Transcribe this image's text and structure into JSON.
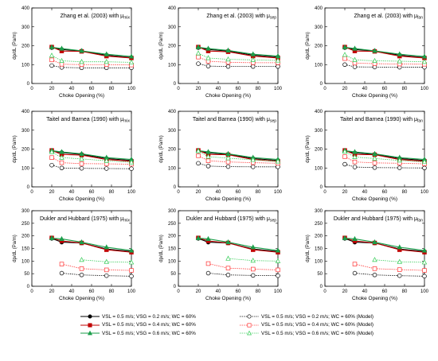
{
  "chart_data": [
    {
      "type": "line",
      "title_main": "Zhang et al. (2003) with ",
      "title_sub": "mix",
      "xlabel": "Choke Opening (%)",
      "ylabel": "dp/dL (Pa/m)",
      "xlim": [
        0,
        100
      ],
      "ylim": [
        0,
        400
      ],
      "xticks": [
        "0",
        "20",
        "40",
        "60",
        "80",
        "100"
      ],
      "yticks": [
        "0",
        "100",
        "200",
        "300",
        "400"
      ],
      "x": [
        20,
        30,
        50,
        75,
        100
      ],
      "series": [
        {
          "values": [
            190,
            180,
            172,
            150,
            137
          ]
        },
        {
          "values": [
            193,
            172,
            170,
            145,
            135
          ]
        },
        {
          "values": [
            192,
            185,
            173,
            155,
            143
          ]
        },
        {
          "values": [
            95,
            85,
            83,
            83,
            83
          ]
        },
        {
          "values": [
            125,
            102,
            100,
            100,
            98
          ]
        },
        {
          "values": [
            148,
            120,
            115,
            115,
            112
          ]
        }
      ]
    },
    {
      "type": "line",
      "title_main": "Zhang et al. (2003) with ",
      "title_sub": "sep",
      "xlabel": "Choke Opening (%)",
      "ylabel": "dp/dL (Pa/m)",
      "xlim": [
        0,
        100
      ],
      "ylim": [
        0,
        400
      ],
      "xticks": [
        "0",
        "20",
        "40",
        "60",
        "80",
        "100"
      ],
      "yticks": [
        "0",
        "100",
        "200",
        "300",
        "400"
      ],
      "x": [
        20,
        30,
        50,
        75,
        100
      ],
      "series": [
        {
          "values": [
            190,
            180,
            172,
            150,
            140
          ]
        },
        {
          "values": [
            193,
            172,
            168,
            145,
            135
          ]
        },
        {
          "values": [
            192,
            185,
            175,
            155,
            145
          ]
        },
        {
          "values": [
            105,
            92,
            90,
            90,
            90
          ]
        },
        {
          "values": [
            140,
            118,
            112,
            110,
            110
          ]
        },
        {
          "values": [
            160,
            135,
            128,
            125,
            122
          ]
        }
      ]
    },
    {
      "type": "line",
      "title_main": "Zhang et al. (2003) with ",
      "title_sub": "fan",
      "xlabel": "Choke Opening (%)",
      "ylabel": "dp/dL (Pa/m)",
      "xlim": [
        0,
        100
      ],
      "ylim": [
        0,
        400
      ],
      "xticks": [
        "0",
        "20",
        "40",
        "60",
        "80",
        "100"
      ],
      "yticks": [
        "0",
        "100",
        "200",
        "300",
        "400"
      ],
      "x": [
        20,
        30,
        50,
        75,
        100
      ],
      "series": [
        {
          "values": [
            190,
            180,
            172,
            150,
            137
          ]
        },
        {
          "values": [
            193,
            172,
            170,
            145,
            135
          ]
        },
        {
          "values": [
            192,
            185,
            173,
            155,
            143
          ]
        },
        {
          "values": [
            100,
            88,
            87,
            86,
            86
          ]
        },
        {
          "values": [
            132,
            108,
            105,
            103,
            102
          ]
        },
        {
          "values": [
            152,
            125,
            120,
            118,
            115
          ]
        }
      ]
    },
    {
      "type": "line",
      "title_main": "Taitel and Barnea (1990) with ",
      "title_sub": "mix",
      "xlabel": "Choke Opening (%)",
      "ylabel": "dp/dL (Pa/m)",
      "xlim": [
        0,
        100
      ],
      "ylim": [
        0,
        400
      ],
      "xticks": [
        "0",
        "20",
        "40",
        "60",
        "80",
        "100"
      ],
      "yticks": [
        "0",
        "100",
        "200",
        "300",
        "400"
      ],
      "x": [
        20,
        30,
        50,
        75,
        100
      ],
      "series": [
        {
          "values": [
            190,
            182,
            172,
            150,
            140
          ]
        },
        {
          "values": [
            193,
            172,
            168,
            145,
            135
          ]
        },
        {
          "values": [
            192,
            185,
            175,
            155,
            145
          ]
        },
        {
          "values": [
            115,
            100,
            98,
            97,
            96
          ]
        },
        {
          "values": [
            155,
            128,
            123,
            122,
            120
          ]
        },
        {
          "values": [
            185,
            155,
            148,
            138,
            130
          ]
        }
      ]
    },
    {
      "type": "line",
      "title_main": "Taitel and Barnea (1990) with ",
      "title_sub": "sep",
      "xlabel": "Choke Opening (%)",
      "ylabel": "dp/dL (Pa/m)",
      "xlim": [
        0,
        100
      ],
      "ylim": [
        0,
        400
      ],
      "xticks": [
        "0",
        "20",
        "40",
        "60",
        "80",
        "100"
      ],
      "yticks": [
        "0",
        "100",
        "200",
        "300",
        "400"
      ],
      "x": [
        20,
        30,
        50,
        75,
        100
      ],
      "series": [
        {
          "values": [
            190,
            180,
            172,
            150,
            140
          ]
        },
        {
          "values": [
            193,
            172,
            170,
            145,
            135
          ]
        },
        {
          "values": [
            192,
            185,
            175,
            155,
            145
          ]
        },
        {
          "values": [
            125,
            110,
            107,
            106,
            106
          ]
        },
        {
          "values": [
            165,
            138,
            132,
            128,
            125
          ]
        },
        {
          "values": [
            190,
            160,
            152,
            143,
            135
          ]
        }
      ]
    },
    {
      "type": "line",
      "title_main": "Taitel and Barnea (1990) with ",
      "title_sub": "fan",
      "xlabel": "Choke Opening (%)",
      "ylabel": "dp/dL (Pa/m)",
      "xlim": [
        0,
        100
      ],
      "ylim": [
        0,
        400
      ],
      "xticks": [
        "0",
        "20",
        "40",
        "60",
        "80",
        "100"
      ],
      "yticks": [
        "0",
        "100",
        "200",
        "300",
        "400"
      ],
      "x": [
        20,
        30,
        50,
        75,
        100
      ],
      "series": [
        {
          "values": [
            190,
            180,
            172,
            150,
            140
          ]
        },
        {
          "values": [
            193,
            172,
            170,
            145,
            135
          ]
        },
        {
          "values": [
            192,
            185,
            175,
            155,
            145
          ]
        },
        {
          "values": [
            120,
            105,
            102,
            101,
            100
          ]
        },
        {
          "values": [
            160,
            132,
            127,
            125,
            122
          ]
        },
        {
          "values": [
            187,
            158,
            150,
            140,
            132
          ]
        }
      ]
    },
    {
      "type": "line",
      "title_main": "Dukler and Hubbard (1975) with ",
      "title_sub": "mix",
      "xlabel": "Choke Opening (%)",
      "ylabel": "dp/dL (Pa/m)",
      "xlim": [
        0,
        100
      ],
      "ylim": [
        0,
        300
      ],
      "xticks": [
        "0",
        "20",
        "40",
        "60",
        "80",
        "100"
      ],
      "yticks": [
        "0",
        "50",
        "100",
        "150",
        "200",
        "250",
        "300"
      ],
      "x": [
        20,
        30,
        50,
        75,
        100
      ],
      "series": [
        {
          "values": [
            190,
            175,
            172,
            148,
            138
          ]
        },
        {
          "values": [
            192,
            180,
            172,
            145,
            135
          ]
        },
        {
          "values": [
            191,
            188,
            175,
            155,
            142
          ]
        },
        {
          "values": [
            null,
            52,
            45,
            42,
            40
          ]
        },
        {
          "values": [
            null,
            88,
            70,
            65,
            63
          ]
        },
        {
          "values": [
            null,
            null,
            105,
            97,
            95
          ]
        }
      ]
    },
    {
      "type": "line",
      "title_main": "Dukler and Hubbard (1975) with ",
      "title_sub": "sep",
      "xlabel": "Choke Opening (%)",
      "ylabel": "dp/dL (Pa/m)",
      "xlim": [
        0,
        100
      ],
      "ylim": [
        0,
        300
      ],
      "xticks": [
        "0",
        "20",
        "40",
        "60",
        "80",
        "100"
      ],
      "yticks": [
        "0",
        "50",
        "100",
        "150",
        "200",
        "250",
        "300"
      ],
      "x": [
        20,
        30,
        50,
        75,
        100
      ],
      "series": [
        {
          "values": [
            190,
            175,
            172,
            148,
            138
          ]
        },
        {
          "values": [
            192,
            180,
            172,
            145,
            135
          ]
        },
        {
          "values": [
            191,
            188,
            175,
            155,
            142
          ]
        },
        {
          "values": [
            null,
            52,
            45,
            43,
            42
          ]
        },
        {
          "values": [
            null,
            90,
            72,
            68,
            65
          ]
        },
        {
          "values": [
            null,
            null,
            110,
            102,
            100
          ]
        }
      ]
    },
    {
      "type": "line",
      "title_main": "Dukler and Hubbard (1975) with ",
      "title_sub": "fan",
      "xlabel": "Choke Opening (%)",
      "ylabel": "dp/dL (Pa/m)",
      "xlim": [
        0,
        100
      ],
      "ylim": [
        0,
        300
      ],
      "xticks": [
        "0",
        "20",
        "40",
        "60",
        "80",
        "100"
      ],
      "yticks": [
        "0",
        "50",
        "100",
        "150",
        "200",
        "250",
        "300"
      ],
      "x": [
        20,
        30,
        50,
        75,
        100
      ],
      "series": [
        {
          "values": [
            190,
            175,
            172,
            148,
            138
          ]
        },
        {
          "values": [
            192,
            180,
            172,
            145,
            135
          ]
        },
        {
          "values": [
            191,
            188,
            175,
            155,
            142
          ]
        },
        {
          "values": [
            null,
            52,
            45,
            42,
            40
          ]
        },
        {
          "values": [
            null,
            88,
            70,
            66,
            63
          ]
        },
        {
          "values": [
            null,
            null,
            105,
            97,
            95
          ]
        }
      ]
    }
  ],
  "series_styles": [
    {
      "color": "#000000",
      "marker": "circle",
      "dash": false,
      "fill": true
    },
    {
      "color": "#c00000",
      "marker": "square",
      "dash": false,
      "fill": true
    },
    {
      "color": "#1a9e4a",
      "marker": "triangle",
      "dash": false,
      "fill": true
    },
    {
      "color": "#000000",
      "marker": "circle",
      "dash": true,
      "fill": false
    },
    {
      "color": "#ff3030",
      "marker": "square",
      "dash": true,
      "fill": false
    },
    {
      "color": "#33cc55",
      "marker": "triangle",
      "dash": true,
      "fill": false
    }
  ],
  "legend": {
    "left": [
      "VSL = 0.5 m/s; VSG = 0.2 m/s; WC = 60%",
      "VSL = 0.5 m/s; VSG = 0.4 m/s; WC = 60%",
      "VSL = 0.5 m/s; VSG = 0.6 m/s; WC = 60%"
    ],
    "right": [
      "VSL = 0.5 m/s; VSG = 0.2 m/s; WC = 60% (Model)",
      "VSL = 0.5 m/s; VSG = 0.4 m/s; WC = 60% (Model)",
      "VSL = 0.5 m/s; VSG = 0.6 m/s; WC = 60% (Model)"
    ]
  }
}
